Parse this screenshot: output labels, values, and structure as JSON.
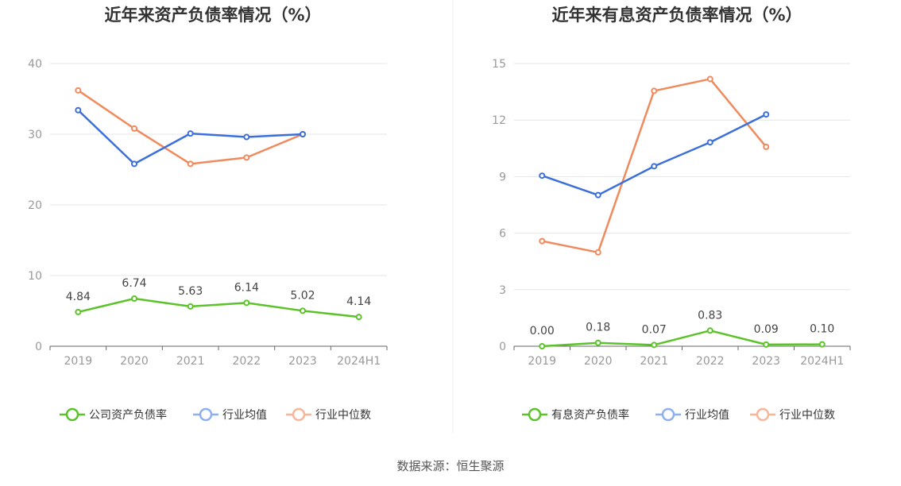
{
  "source_label": "数据来源：恒生聚源",
  "chart_data": [
    {
      "type": "line",
      "title": "近年来资产负债率情况（%）",
      "categories": [
        "2019",
        "2020",
        "2021",
        "2022",
        "2023",
        "2024H1"
      ],
      "ylim": [
        0,
        40
      ],
      "yticks": [
        "0",
        "10",
        "20",
        "30",
        "40"
      ],
      "grid": true,
      "legend_position": "bottom",
      "series": [
        {
          "name": "公司资产负债率",
          "color": "#5cc22a",
          "values": [
            4.84,
            6.74,
            5.63,
            6.14,
            5.02,
            4.14
          ],
          "labels": [
            "4.84",
            "6.74",
            "5.63",
            "6.14",
            "5.02",
            "4.14"
          ]
        },
        {
          "name": "行业均值",
          "color": "#3b6fdc",
          "values": [
            33.4,
            25.8,
            30.1,
            29.6,
            30.0,
            null
          ]
        },
        {
          "name": "行业中位数",
          "color": "#f08a5d",
          "values": [
            36.2,
            30.8,
            25.8,
            26.7,
            30.0,
            null
          ]
        }
      ]
    },
    {
      "type": "line",
      "title": "近年来有息资产负债率情况（%）",
      "categories": [
        "2019",
        "2020",
        "2021",
        "2022",
        "2023",
        "2024H1"
      ],
      "ylim": [
        0,
        15
      ],
      "yticks": [
        "0",
        "3",
        "6",
        "9",
        "12",
        "15"
      ],
      "grid": true,
      "legend_position": "bottom",
      "series": [
        {
          "name": "有息资产负债率",
          "color": "#5cc22a",
          "values": [
            0.0,
            0.18,
            0.07,
            0.83,
            0.09,
            0.1
          ],
          "labels": [
            "0.00",
            "0.18",
            "0.07",
            "0.83",
            "0.09",
            "0.10"
          ]
        },
        {
          "name": "行业均值",
          "color": "#3b6fdc",
          "values": [
            9.05,
            8.02,
            9.55,
            10.82,
            12.3,
            null
          ]
        },
        {
          "name": "行业中位数",
          "color": "#f08a5d",
          "values": [
            5.58,
            4.98,
            13.55,
            14.18,
            10.58,
            null
          ]
        }
      ]
    }
  ]
}
